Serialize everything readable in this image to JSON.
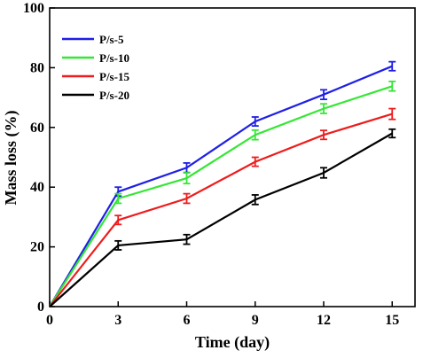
{
  "chart_data": {
    "type": "line",
    "title": "",
    "xlabel": "Time (day)",
    "ylabel": "Mass loss (%)",
    "xlim": [
      0,
      16
    ],
    "ylim": [
      0,
      100
    ],
    "x_ticks": [
      0,
      3,
      6,
      9,
      12,
      15
    ],
    "y_ticks": [
      0,
      20,
      40,
      60,
      80,
      100
    ],
    "grid": false,
    "legend_position": "top-left",
    "error_bars": true,
    "x": [
      0,
      3,
      6,
      9,
      12,
      15
    ],
    "series": [
      {
        "name": "P/s-5",
        "color": "#1f1fe6",
        "values": [
          0,
          38.5,
          46.5,
          62.0,
          71.0,
          80.5
        ],
        "errors": [
          0,
          1.5,
          1.6,
          1.5,
          1.6,
          1.5
        ]
      },
      {
        "name": "P/s-10",
        "color": "#35e635",
        "values": [
          0,
          36.2,
          43.0,
          57.5,
          66.3,
          73.8
        ],
        "errors": [
          0,
          1.6,
          1.8,
          1.6,
          1.6,
          1.6
        ]
      },
      {
        "name": "P/s-15",
        "color": "#ee1c1c",
        "values": [
          0,
          29.0,
          36.2,
          48.5,
          57.5,
          64.5
        ],
        "errors": [
          0,
          1.5,
          1.6,
          1.5,
          1.5,
          1.8
        ]
      },
      {
        "name": "P/s-20",
        "color": "#000000",
        "values": [
          0,
          20.5,
          22.5,
          35.8,
          44.8,
          58.0
        ],
        "errors": [
          0,
          1.5,
          1.6,
          1.6,
          1.7,
          1.4
        ]
      }
    ]
  }
}
